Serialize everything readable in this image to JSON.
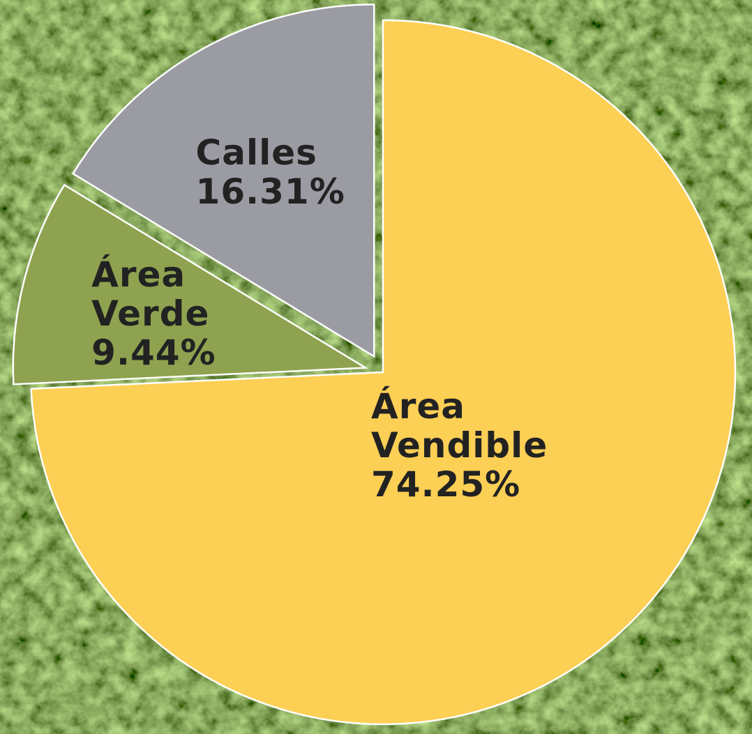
{
  "chart_data": {
    "type": "pie",
    "categories": [
      "Área Vendible",
      "Área Verde",
      "Calles"
    ],
    "values": [
      74.25,
      9.44,
      16.31
    ],
    "value_labels": [
      "74.25%",
      "9.44%",
      "16.31%"
    ],
    "colors": [
      "#fccf55",
      "#8fa24f",
      "#9b9ba3"
    ]
  }
}
